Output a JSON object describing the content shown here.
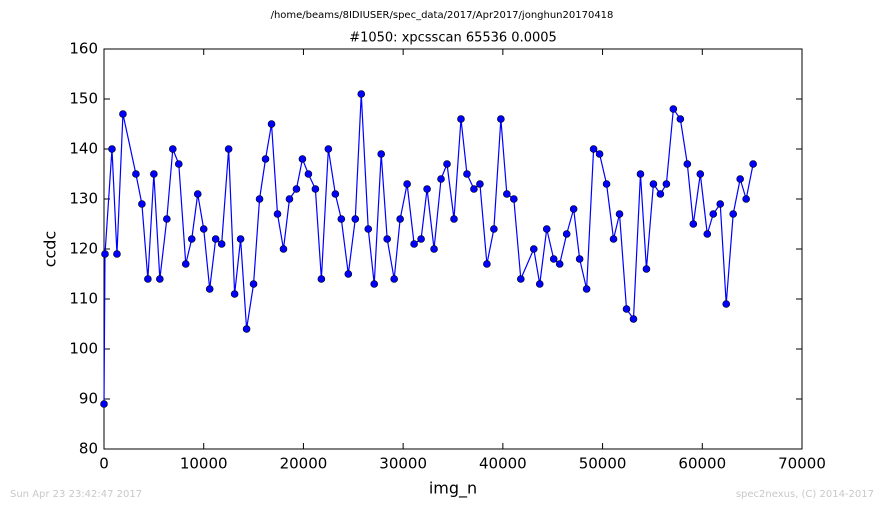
{
  "chart_data": {
    "type": "line",
    "header": "/home/beams/8IDIUSER/spec_data/2017/Apr2017/jonghun20170418",
    "title": "#1050: xpcsscan 65536 0.0005",
    "x_label": "img_n",
    "y_label": "ccdc",
    "footer_left": "Sun Apr 23 23:42:47 2017",
    "footer_right": "spec2nexus, (C) 2014-2017",
    "x": [
      0,
      100,
      800,
      1300,
      1900,
      3200,
      3800,
      4400,
      5000,
      5600,
      6300,
      6900,
      7500,
      8200,
      8800,
      9400,
      10000,
      10600,
      11200,
      11800,
      12500,
      13100,
      13700,
      14300,
      15000,
      15600,
      16200,
      16800,
      17400,
      18000,
      18600,
      19300,
      19900,
      20500,
      21200,
      21800,
      22500,
      23200,
      23800,
      24500,
      25200,
      25800,
      26500,
      27100,
      27800,
      28400,
      29100,
      29700,
      30400,
      31100,
      31800,
      32400,
      33100,
      33800,
      34400,
      35100,
      35800,
      36400,
      37100,
      37700,
      38400,
      39100,
      39800,
      40400,
      41100,
      41800,
      43100,
      43700,
      44400,
      45100,
      45700,
      46400,
      47100,
      47700,
      48400,
      49100,
      49700,
      50400,
      51100,
      51700,
      52400,
      53100,
      53800,
      54400,
      55100,
      55800,
      56400,
      57100,
      57800,
      58500,
      59100,
      59800,
      60500,
      61100,
      61800,
      62400,
      63100,
      63800,
      64400,
      65100
    ],
    "series": [
      {
        "color": "#0000ff",
        "values": [
          89,
          119,
          140,
          119,
          147,
          135,
          129,
          114,
          135,
          114,
          126,
          140,
          137,
          117,
          122,
          131,
          124,
          112,
          122,
          121,
          140,
          111,
          122,
          104,
          113,
          130,
          138,
          145,
          127,
          120,
          130,
          132,
          138,
          135,
          132,
          114,
          140,
          131,
          126,
          115,
          126,
          151,
          124,
          113,
          139,
          122,
          114,
          126,
          133,
          121,
          122,
          132,
          120,
          134,
          137,
          126,
          146,
          135,
          132,
          133,
          117,
          124,
          146,
          131,
          130,
          114,
          120,
          113,
          124,
          118,
          117,
          123,
          128,
          118,
          112,
          140,
          139,
          133,
          122,
          127,
          108,
          106,
          135,
          116,
          133,
          131,
          133,
          148,
          146,
          137,
          125,
          135,
          123,
          127,
          129,
          109,
          127,
          134,
          130,
          137
        ]
      }
    ],
    "xlim": [
      0,
      70000
    ],
    "xticks": [
      0,
      10000,
      20000,
      30000,
      40000,
      50000,
      60000,
      70000
    ],
    "ylim": [
      80,
      160
    ],
    "yticks": [
      80,
      90,
      100,
      110,
      120,
      130,
      140,
      150,
      160
    ],
    "grid": false
  }
}
